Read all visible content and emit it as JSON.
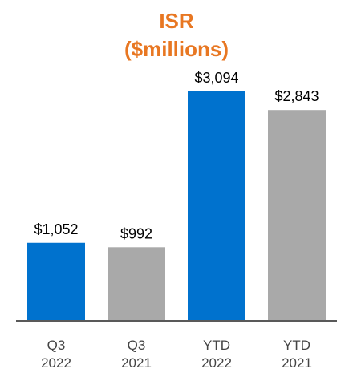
{
  "chart_data": {
    "type": "bar",
    "title": "ISR",
    "subtitle": "($millions)",
    "xlabel": "",
    "ylabel": "",
    "categories": [
      [
        "Q3",
        "2022"
      ],
      [
        "Q3",
        "2021"
      ],
      [
        "YTD",
        "2022"
      ],
      [
        "YTD",
        "2021"
      ]
    ],
    "values": [
      1052,
      992,
      3094,
      2843
    ],
    "data_labels": [
      "$1,052",
      "$992",
      "$3,094",
      "$2,843"
    ],
    "ylim": [
      0,
      3094
    ],
    "grid": false,
    "legend": "none"
  },
  "colors": {
    "title": "#E87722",
    "current_period": "#0072CE",
    "prior_period": "#A9A9A9",
    "axis": "#595959"
  }
}
